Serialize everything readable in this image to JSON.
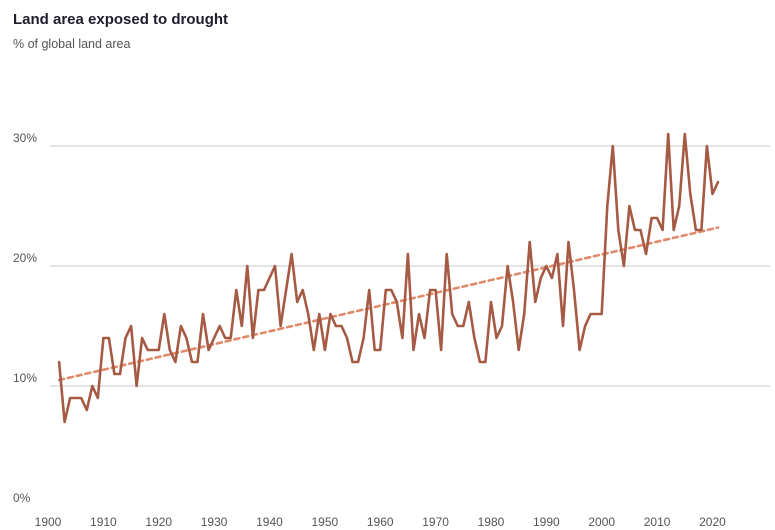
{
  "chart_data": {
    "type": "line",
    "title": "Land area exposed to drought",
    "subtitle": "% of global land area",
    "xlabel": "",
    "ylabel": "% of global land area",
    "xlim": [
      1900,
      2023
    ],
    "ylim": [
      0,
      30
    ],
    "x_ticks": [
      1900,
      1910,
      1920,
      1930,
      1940,
      1950,
      1960,
      1970,
      1980,
      1990,
      2000,
      2010,
      2020
    ],
    "y_ticks": [
      0,
      10,
      20,
      30
    ],
    "y_tick_labels": [
      "0%",
      "10%",
      "20%",
      "30%"
    ],
    "grid": true,
    "colors": {
      "series": "#a65a44",
      "trend": "#e08a6c",
      "grid": "#c8c8c8"
    },
    "series": [
      {
        "name": "Land area exposed to drought",
        "style": "solid",
        "x": [
          1902,
          1903,
          1904,
          1905,
          1906,
          1907,
          1908,
          1909,
          1910,
          1911,
          1912,
          1913,
          1914,
          1915,
          1916,
          1917,
          1918,
          1919,
          1920,
          1921,
          1922,
          1923,
          1924,
          1925,
          1926,
          1927,
          1928,
          1929,
          1930,
          1931,
          1932,
          1933,
          1934,
          1935,
          1936,
          1937,
          1938,
          1939,
          1940,
          1941,
          1942,
          1943,
          1944,
          1945,
          1946,
          1947,
          1948,
          1949,
          1950,
          1951,
          1952,
          1953,
          1954,
          1955,
          1956,
          1957,
          1958,
          1959,
          1960,
          1961,
          1962,
          1963,
          1964,
          1965,
          1966,
          1967,
          1968,
          1969,
          1970,
          1971,
          1972,
          1973,
          1974,
          1975,
          1976,
          1977,
          1978,
          1979,
          1980,
          1981,
          1982,
          1983,
          1984,
          1985,
          1986,
          1987,
          1988,
          1989,
          1990,
          1991,
          1992,
          1993,
          1994,
          1995,
          1996,
          1997,
          1998,
          1999,
          2000,
          2001,
          2002,
          2003,
          2004,
          2005,
          2006,
          2007,
          2008,
          2009,
          2010,
          2011,
          2012,
          2013,
          2014,
          2015,
          2016,
          2017,
          2018,
          2019,
          2020,
          2021
        ],
        "values": [
          12,
          7,
          9,
          9,
          9,
          8,
          10,
          9,
          14,
          14,
          11,
          11,
          14,
          15,
          10,
          14,
          13,
          13,
          13,
          16,
          13,
          12,
          15,
          14,
          12,
          12,
          16,
          13,
          14,
          15,
          14,
          14,
          18,
          15,
          20,
          14,
          18,
          18,
          19,
          20,
          15,
          18,
          21,
          17,
          18,
          16,
          13,
          16,
          13,
          16,
          15,
          15,
          14,
          12,
          12,
          14,
          18,
          13,
          13,
          18,
          18,
          17,
          14,
          21,
          13,
          16,
          14,
          18,
          18,
          13,
          21,
          16,
          15,
          15,
          17,
          14,
          12,
          12,
          17,
          14,
          15,
          20,
          17,
          13,
          16,
          22,
          17,
          19,
          20,
          19,
          21,
          15,
          22,
          18,
          13,
          15,
          16,
          16,
          16,
          25,
          30,
          23,
          20,
          25,
          23,
          23,
          21,
          24,
          24,
          23,
          31,
          23,
          25,
          31,
          26,
          23,
          23,
          30,
          26,
          27
        ]
      },
      {
        "name": "Linear trend",
        "style": "dashed",
        "x": [
          1902,
          2021
        ],
        "values": [
          10.5,
          23.2
        ]
      }
    ]
  }
}
